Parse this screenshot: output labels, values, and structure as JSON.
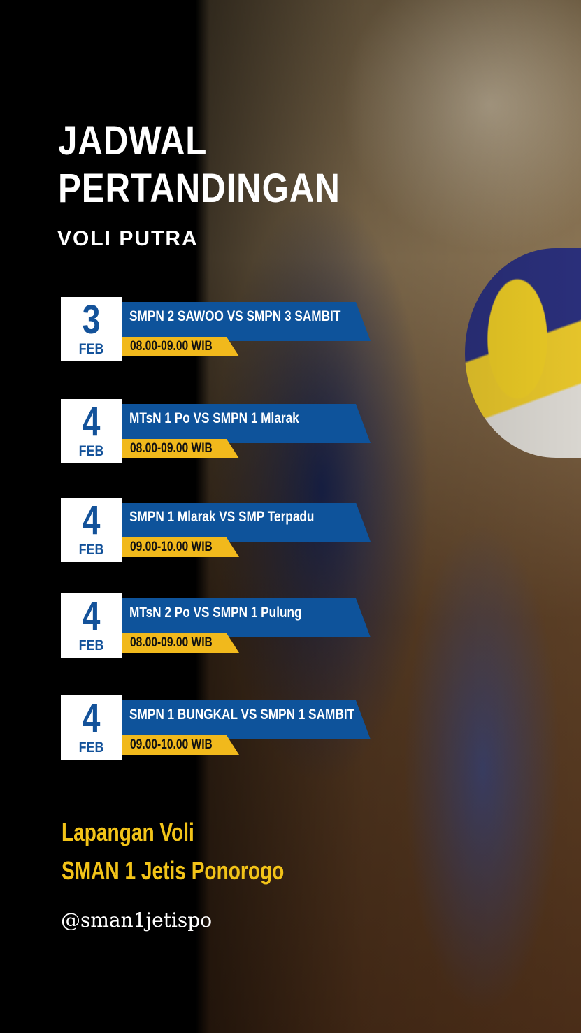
{
  "title_line1": "JADWAL",
  "title_line2": "PERTANDINGAN",
  "subtitle": "VOLI PUTRA",
  "matches": [
    {
      "day": "3",
      "month": "FEB",
      "teams": "SMPN 2 SAWOO VS SMPN 3 SAMBIT",
      "time": "08.00-09.00 WIB"
    },
    {
      "day": "4",
      "month": "FEB",
      "teams": "MTsN 1 Po VS SMPN 1 Mlarak",
      "time": "08.00-09.00 WIB"
    },
    {
      "day": "4",
      "month": "FEB",
      "teams": "SMPN 1 Mlarak VS SMP Terpadu",
      "time": "09.00-10.00 WIB"
    },
    {
      "day": "4",
      "month": "FEB",
      "teams": "MTsN 2 Po VS SMPN 1 Pulung",
      "time": "08.00-09.00 WIB"
    },
    {
      "day": "4",
      "month": "FEB",
      "teams": "SMPN 1 BUNGKAL VS SMPN 1 SAMBIT",
      "time": "09.00-10.00 WIB"
    }
  ],
  "venue_line1": "Lapangan Voli",
  "venue_line2": "SMAN 1 Jetis Ponorogo",
  "handle": "@sman1jetispo",
  "colors": {
    "banner": "#0e539b",
    "time_tab": "#f1b91c",
    "venue_text": "#f2c318",
    "background": "#000000"
  }
}
